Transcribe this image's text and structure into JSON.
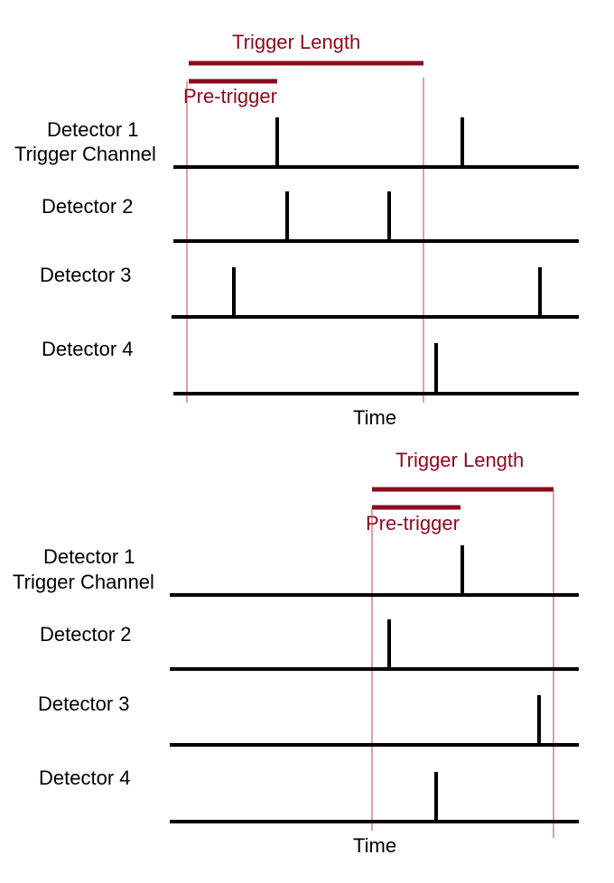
{
  "colors": {
    "accent": "#8b0a1e",
    "line": "#000000"
  },
  "panels": [
    {
      "trigger_length_label": "Trigger Length",
      "pre_trigger_label": "Pre-trigger",
      "time_label": "Time",
      "detectors": [
        {
          "label": "Detector 1",
          "sublabel": "Trigger Channel"
        },
        {
          "label": "Detector 2"
        },
        {
          "label": "Detector 3"
        },
        {
          "label": "Detector 4"
        }
      ]
    },
    {
      "trigger_length_label": "Trigger Length",
      "pre_trigger_label": "Pre-trigger",
      "time_label": "Time",
      "detectors": [
        {
          "label": "Detector 1",
          "sublabel": "Trigger Channel"
        },
        {
          "label": "Detector 2"
        },
        {
          "label": "Detector 3"
        },
        {
          "label": "Detector 4"
        }
      ]
    }
  ]
}
